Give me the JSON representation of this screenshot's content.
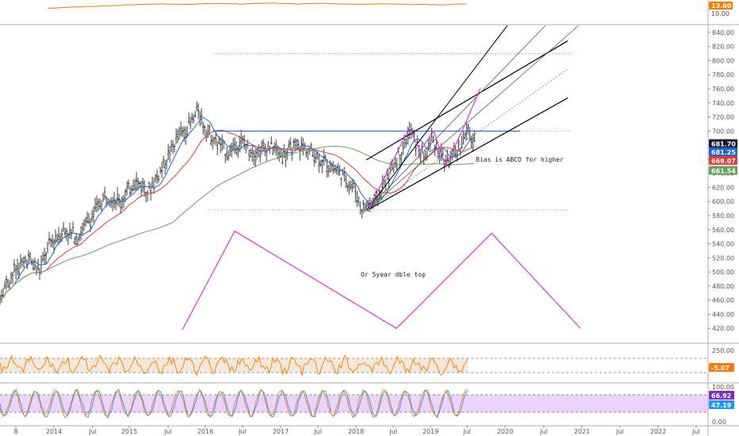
{
  "chart_data": [
    {
      "type": "line",
      "panel": "top-indicator",
      "series": [
        {
          "color": "#f57c00",
          "values": [
            12.6,
            12.9,
            13.1,
            13.4,
            13.6,
            13.5,
            13.7,
            13.6,
            13.8,
            13.6,
            13.7,
            13.5,
            13.6,
            13.5,
            13.4,
            13.6
          ]
        }
      ],
      "last_value": "13.60",
      "ytick_labels": [
        "10.00"
      ],
      "ylim": [
        9.0,
        14.5
      ]
    },
    {
      "type": "ohlc",
      "panel": "price",
      "x_tick_labels": [
        "8",
        "2014",
        "Jul",
        "2015",
        "Jul",
        "2016",
        "Jul",
        "2017",
        "Jul",
        "2018",
        "Jul",
        "2019",
        "Jul",
        "2020",
        "Jul",
        "2021",
        "Jul",
        "2022",
        "Jul"
      ],
      "y_tick_labels": [
        "420.00",
        "440.00",
        "460.00",
        "480.00",
        "500.00",
        "520.00",
        "540.00",
        "560.00",
        "580.00",
        "600.00",
        "620.00",
        "640.00",
        "660.00",
        "680.00",
        "700.00",
        "720.00",
        "740.00",
        "760.00",
        "780.00",
        "800.00",
        "820.00",
        "840.00"
      ],
      "ylim": [
        400,
        850
      ],
      "price_anchors": [
        [
          0,
          470
        ],
        [
          0.02,
          500
        ],
        [
          0.04,
          520
        ],
        [
          0.055,
          500
        ],
        [
          0.07,
          540
        ],
        [
          0.09,
          560
        ],
        [
          0.11,
          550
        ],
        [
          0.13,
          580
        ],
        [
          0.15,
          610
        ],
        [
          0.17,
          600
        ],
        [
          0.19,
          630
        ],
        [
          0.21,
          615
        ],
        [
          0.23,
          650
        ],
        [
          0.25,
          690
        ],
        [
          0.27,
          710
        ],
        [
          0.28,
          730
        ],
        [
          0.29,
          705
        ],
        [
          0.3,
          690
        ],
        [
          0.32,
          670
        ],
        [
          0.34,
          685
        ],
        [
          0.36,
          670
        ],
        [
          0.38,
          680
        ],
        [
          0.4,
          665
        ],
        [
          0.42,
          680
        ],
        [
          0.44,
          670
        ],
        [
          0.46,
          655
        ],
        [
          0.48,
          640
        ],
        [
          0.5,
          620
        ],
        [
          0.51,
          590
        ],
        [
          0.53,
          600
        ],
        [
          0.55,
          640
        ],
        [
          0.57,
          680
        ],
        [
          0.58,
          700
        ],
        [
          0.59,
          675
        ],
        [
          0.6,
          660
        ],
        [
          0.61,
          690
        ],
        [
          0.62,
          670
        ],
        [
          0.63,
          655
        ],
        [
          0.645,
          670
        ],
        [
          0.66,
          700
        ],
        [
          0.67,
          682
        ]
      ],
      "ma_series": [
        {
          "color": "#1e63d6",
          "last": "681.25"
        },
        {
          "color": "#e53935",
          "last": "669.07"
        },
        {
          "color": "#6a9e5a",
          "last": "661.54"
        }
      ],
      "last_price": "681.70",
      "annotations": [
        "Bias is ABCD for higher",
        "Or 5year dble top"
      ],
      "colors": {
        "price_badge": "#1a1a2e",
        "blue_badge": "#1e63d6",
        "red_badge": "#e53935",
        "green_badge": "#6a9e5a",
        "pattern": "#e040e0",
        "channel": "#000000"
      }
    },
    {
      "type": "line",
      "panel": "cci",
      "y_tick_labels": [
        "250.00"
      ],
      "last_value": "-5.07",
      "color": "#f57c00"
    },
    {
      "type": "line",
      "panel": "stochastic",
      "y_tick_labels": [
        "100.00",
        "0.00"
      ],
      "series": [
        {
          "color": "#2196f3",
          "last": "47.19"
        },
        {
          "color": "#f57c00"
        }
      ],
      "level_value": "66.92",
      "fill_color": "#e8c8ff"
    }
  ]
}
